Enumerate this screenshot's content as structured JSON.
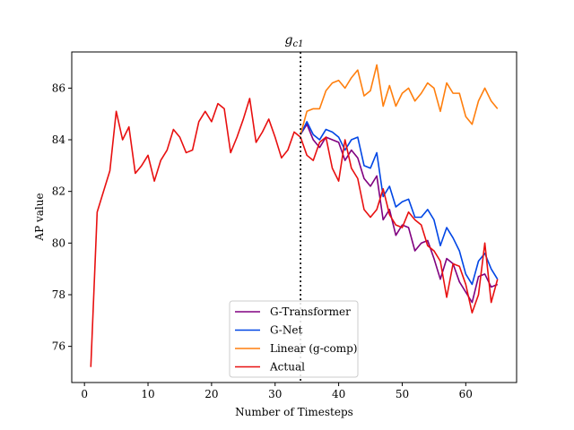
{
  "chart_data": {
    "type": "line",
    "title": "g_c1",
    "title_main": "g",
    "title_sub": "c1",
    "xlabel": "Number of Timesteps",
    "ylabel": "AP value",
    "xlim": [
      -2,
      68
    ],
    "ylim": [
      74.6,
      87.4
    ],
    "xticks": [
      0,
      10,
      20,
      30,
      40,
      50,
      60
    ],
    "yticks": [
      76,
      78,
      80,
      82,
      84,
      86
    ],
    "vline_x": 34,
    "legend_position": "lower-center",
    "series": [
      {
        "name": "G-Transformer",
        "color": "#800080",
        "x": [
          34,
          35,
          36,
          37,
          38,
          39,
          40,
          41,
          42,
          43,
          44,
          45,
          46,
          47,
          48,
          49,
          50,
          51,
          52,
          53,
          54,
          55,
          56,
          57,
          58,
          59,
          60,
          61,
          62,
          63,
          64,
          65
        ],
        "values": [
          84.2,
          84.6,
          84.0,
          83.7,
          84.1,
          84.0,
          83.9,
          83.2,
          83.6,
          83.3,
          82.5,
          82.2,
          82.6,
          80.9,
          81.3,
          80.3,
          80.7,
          80.6,
          79.7,
          80.0,
          80.1,
          79.4,
          78.6,
          79.4,
          79.2,
          78.5,
          78.1,
          77.7,
          78.7,
          78.8,
          78.3,
          78.4
        ]
      },
      {
        "name": "G-Net",
        "color": "#0046e5",
        "x": [
          34,
          35,
          36,
          37,
          38,
          39,
          40,
          41,
          42,
          43,
          44,
          45,
          46,
          47,
          48,
          49,
          50,
          51,
          52,
          53,
          54,
          55,
          56,
          57,
          58,
          59,
          60,
          61,
          62,
          63,
          64,
          65
        ],
        "values": [
          84.2,
          84.7,
          84.2,
          84.0,
          84.4,
          84.3,
          84.1,
          83.6,
          84.0,
          84.1,
          83.0,
          82.9,
          83.5,
          81.8,
          82.2,
          81.4,
          81.6,
          81.7,
          81.0,
          81.0,
          81.3,
          80.9,
          79.9,
          80.6,
          80.2,
          79.7,
          78.8,
          78.4,
          79.3,
          79.6,
          79.0,
          78.6
        ]
      },
      {
        "name": "Linear (g-comp)",
        "color": "#ff7f0e",
        "x": [
          34,
          35,
          36,
          37,
          38,
          39,
          40,
          41,
          42,
          43,
          44,
          45,
          46,
          47,
          48,
          49,
          50,
          51,
          52,
          53,
          54,
          55,
          56,
          57,
          58,
          59,
          60,
          61,
          62,
          63,
          64,
          65
        ],
        "values": [
          84.2,
          85.1,
          85.2,
          85.2,
          85.9,
          86.2,
          86.3,
          86.0,
          86.4,
          86.7,
          85.7,
          85.9,
          86.9,
          85.3,
          86.1,
          85.3,
          85.8,
          86.0,
          85.5,
          85.8,
          86.2,
          86.0,
          85.1,
          86.2,
          85.8,
          85.8,
          84.9,
          84.6,
          85.5,
          86.0,
          85.5,
          85.2
        ]
      },
      {
        "name": "Actual",
        "color": "#e81010",
        "x": [
          1,
          2,
          3,
          4,
          5,
          6,
          7,
          8,
          9,
          10,
          11,
          12,
          13,
          14,
          15,
          16,
          17,
          18,
          19,
          20,
          21,
          22,
          23,
          24,
          25,
          26,
          27,
          28,
          29,
          30,
          31,
          32,
          33,
          34,
          35,
          36,
          37,
          38,
          39,
          40,
          41,
          42,
          43,
          44,
          45,
          46,
          47,
          48,
          49,
          50,
          51,
          52,
          53,
          54,
          55,
          56,
          57,
          58,
          59,
          60,
          61,
          62,
          63,
          64,
          65
        ],
        "values": [
          75.2,
          81.2,
          82.0,
          82.8,
          85.1,
          84.0,
          84.5,
          82.7,
          83.0,
          83.4,
          82.4,
          83.2,
          83.6,
          84.4,
          84.1,
          83.5,
          83.6,
          84.7,
          85.1,
          84.7,
          85.4,
          85.2,
          83.5,
          84.1,
          84.8,
          85.6,
          83.9,
          84.3,
          84.8,
          84.1,
          83.3,
          83.6,
          84.3,
          84.1,
          83.4,
          83.2,
          83.9,
          84.1,
          82.9,
          82.4,
          84.0,
          82.9,
          82.5,
          81.3,
          81.0,
          81.3,
          82.1,
          81.1,
          80.7,
          80.6,
          81.2,
          80.9,
          80.7,
          79.9,
          79.7,
          79.3,
          77.9,
          79.2,
          79.1,
          78.4,
          77.3,
          78.0,
          80.0,
          77.7,
          78.6
        ]
      }
    ]
  }
}
